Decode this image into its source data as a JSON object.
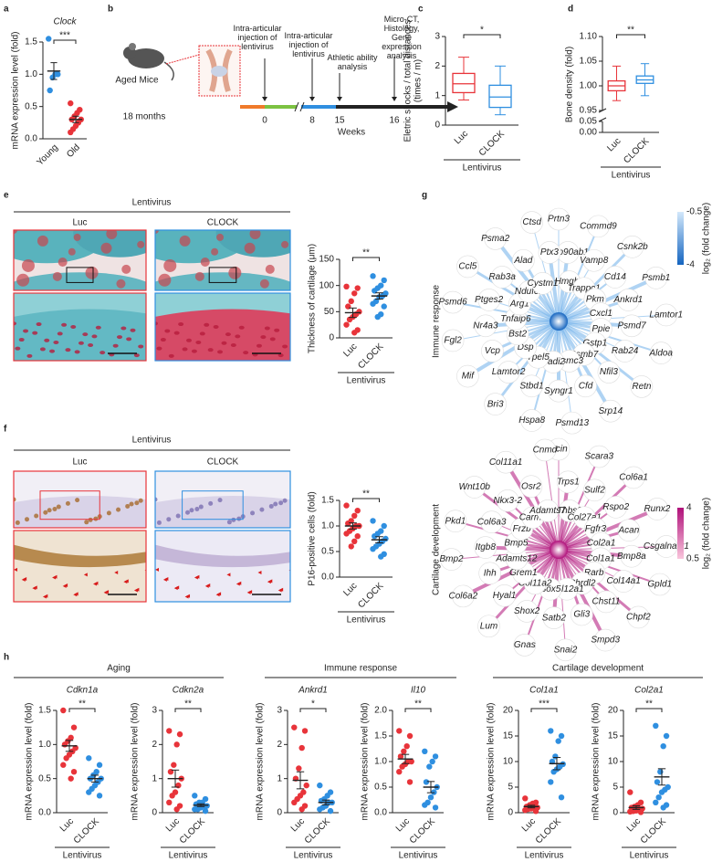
{
  "panel_labels": [
    "a",
    "b",
    "c",
    "d",
    "e",
    "f",
    "g",
    "h"
  ],
  "timeline": {
    "subject": "Aged Mice",
    "age": "18 months",
    "events": [
      {
        "label": "Intra-articular injection of lentivirus",
        "week": 0
      },
      {
        "label": "Intra-articular injection of lentivirus",
        "week": 8
      },
      {
        "label": "Athletic ability analysis",
        "week": 15
      },
      {
        "label": "Micro-CT, Histology, Gene expression analysis",
        "week": 16
      }
    ],
    "unit": "Weeks"
  },
  "histology": [
    {
      "header": "Lentivirus",
      "labels": [
        "Luc",
        "CLOCK"
      ]
    },
    {
      "header": "Lentivirus",
      "labels": [
        "Luc",
        "CLOCK"
      ]
    }
  ],
  "h_groups": [
    "Aging",
    "Immune response",
    "Cartilage development"
  ],
  "networks": [
    {
      "title": "Immune response",
      "genes": [
        "Prtn3",
        "Hsp90ab1",
        "Hmgb1",
        "Commd9",
        "Vamp8",
        "Trappc1",
        "Csnk2b",
        "Cd14",
        "Pkm",
        "Psmb1",
        "Ankrd1",
        "Cxcl1",
        "Lamtor1",
        "Psmd7",
        "Ppie",
        "Aldoa",
        "Rab24",
        "Gstp1",
        "Retn",
        "Nfil3",
        "Psmb7",
        "Srp14",
        "Cfd",
        "Psmc3",
        "Psmd13",
        "Syngr1",
        "Padi2",
        "Hspa8",
        "Stbd1",
        "Ypel5",
        "Bri3",
        "Lamtor2",
        "Dsp",
        "Mif",
        "Vcp",
        "Bst2",
        "Fgl2",
        "Nr4a3",
        "Tnfaip6",
        "Psmd6",
        "Ptges2",
        "Arg1",
        "Ccl5",
        "Rab3a",
        "Ndufc2",
        "Psma2",
        "Alad",
        "Cystm1",
        "Ctsd",
        "Ptx3"
      ],
      "legend": {
        "title": "log₂ (fold change)",
        "ticks": [
          -0.5,
          -4
        ],
        "colors": [
          "#d3e8fb",
          "#1565c0"
        ]
      }
    },
    {
      "title": "Cartilage development",
      "genes": [
        "Scin",
        "Trps1",
        "Thbs3",
        "Scara3",
        "Sulf2",
        "Col27a1",
        "Col6a1",
        "Rspo2",
        "Fgfr3",
        "Runx2",
        "Acan",
        "Col2a1",
        "Csgalnact1",
        "Bmp8a",
        "Col1a1",
        "Gpld1",
        "Col14a1",
        "Rarb",
        "Chpf2",
        "Chst11",
        "Chrdl2",
        "Smpd3",
        "Gli3",
        "Col12a1",
        "Snai2",
        "Satb2",
        "Sox5",
        "Gnas",
        "Shox2",
        "Col11a2",
        "Lum",
        "Hyal1",
        "Grem1",
        "Col6a2",
        "Ihh",
        "Adamts12",
        "Bmp2",
        "Itgb8",
        "Bmp5",
        "Pkd1",
        "Col6a3",
        "Frzb",
        "Wnt10b",
        "Nkx3-2",
        "Carm1",
        "Col11a1",
        "Osr2",
        "Adamts7",
        "Cnmd"
      ],
      "legend": {
        "title": "log₂ (fold change)",
        "ticks": [
          4,
          0.5
        ],
        "colors": [
          "#b0107a",
          "#f9c6dc"
        ]
      }
    }
  ],
  "chart_data": [
    {
      "type": "dot",
      "title": "Clock",
      "ylabel": "mRNA expression level (fold)",
      "categories": [
        "Young",
        "Old"
      ],
      "colors": [
        "#2f8fe0",
        "#e8343a"
      ],
      "values": [
        [
          1.55,
          1.0,
          1.0,
          0.95,
          0.75
        ],
        [
          0.55,
          0.45,
          0.4,
          0.35,
          0.3,
          0.3,
          0.25,
          0.2,
          0.15,
          0.1
        ]
      ],
      "means": [
        1.05,
        0.3
      ],
      "errors": [
        0.13,
        0.05
      ],
      "ylim": [
        0,
        1.5
      ],
      "yticks": [
        {
          "value": 0,
          "label": "0.0"
        },
        0.5,
        {
          "value": 1,
          "label": "1.0"
        },
        1.5
      ],
      "annotation": "***"
    },
    {
      "type": "box",
      "ylabel": [
        "Eletric shocks / total distances",
        "(times / m)"
      ],
      "categories": [
        "Luc",
        "CLOCK"
      ],
      "colors": [
        "#e8343a",
        "#2f8fe0"
      ],
      "boxes": [
        {
          "min": 0.85,
          "q1": 1.1,
          "median": 1.4,
          "q3": 1.75,
          "max": 2.3
        },
        {
          "min": 0.35,
          "q1": 0.6,
          "median": 0.95,
          "q3": 1.35,
          "max": 2.0
        }
      ],
      "ylim": [
        0,
        3
      ],
      "yticks": [
        0,
        1,
        2,
        3
      ],
      "annotation": "*",
      "group_label": "Lentivirus"
    },
    {
      "type": "box",
      "ylabel": "Bone density (fold)",
      "categories": [
        "Luc",
        "CLOCK"
      ],
      "colors": [
        "#e8343a",
        "#2f8fe0"
      ],
      "boxes": [
        {
          "min": 0.97,
          "q1": 0.99,
          "median": 1.0,
          "q3": 1.01,
          "max": 1.04
        },
        {
          "min": 0.98,
          "q1": 1.005,
          "median": 1.012,
          "q3": 1.02,
          "max": 1.045
        }
      ],
      "ylim": [
        0.95,
        1.1
      ],
      "yticks": [
        0.95,
        {
          "value": 1,
          "label": "1.00"
        },
        1.05,
        {
          "value": 1.1,
          "label": "1.10"
        }
      ],
      "ybreak": {
        "lim": [
          0,
          0.05
        ],
        "ticks": [
          {
            "value": 0,
            "label": "0.00"
          },
          0.05
        ]
      },
      "annotation": "**",
      "group_label": "Lentivirus"
    },
    {
      "type": "dot",
      "ylabel": "Thickness of cartilage (μm)",
      "categories": [
        "Luc",
        "CLOCK"
      ],
      "colors": [
        "#e8343a",
        "#2f8fe0"
      ],
      "values": [
        [
          98,
          95,
          85,
          70,
          60,
          50,
          45,
          40,
          35,
          25,
          15,
          10
        ],
        [
          118,
          110,
          100,
          95,
          90,
          85,
          80,
          78,
          70,
          65,
          60,
          45,
          40
        ]
      ],
      "means": [
        48,
        80
      ],
      "errors": [
        9,
        6
      ],
      "ylim": [
        0,
        150
      ],
      "yticks": [
        0,
        50,
        100,
        150
      ],
      "annotation": "**",
      "group_label": "Lentivirus"
    },
    {
      "type": "dot",
      "ylabel": "P16-positive cells (fold)",
      "categories": [
        "Luc",
        "CLOCK"
      ],
      "colors": [
        "#e8343a",
        "#2f8fe0"
      ],
      "values": [
        [
          1.4,
          1.3,
          1.2,
          1.1,
          1.05,
          1.0,
          1.0,
          0.95,
          0.9,
          0.85,
          0.8,
          0.7,
          0.6
        ],
        [
          1.1,
          1.0,
          0.9,
          0.85,
          0.8,
          0.75,
          0.7,
          0.65,
          0.6,
          0.55,
          0.45,
          0.4
        ]
      ],
      "means": [
        1.0,
        0.73
      ],
      "errors": [
        0.06,
        0.06
      ],
      "ylim": [
        0,
        1.5
      ],
      "yticks": [
        {
          "value": 0,
          "label": "0.0"
        },
        0.5,
        {
          "value": 1,
          "label": "1.0"
        },
        1.5
      ],
      "annotation": "**",
      "group_label": "Lentivirus"
    },
    {
      "type": "dot",
      "title": "Cdkn1a",
      "ylabel": "mRNA expression level (fold)",
      "categories": [
        "Luc",
        "CLOCK"
      ],
      "colors": [
        "#e8343a",
        "#2f8fe0"
      ],
      "values": [
        [
          1.5,
          1.25,
          1.1,
          1.05,
          1.0,
          0.95,
          0.9,
          0.85,
          0.8,
          0.7,
          0.6,
          0.5
        ],
        [
          0.8,
          0.7,
          0.6,
          0.55,
          0.5,
          0.5,
          0.45,
          0.4,
          0.35,
          0.3,
          0.25
        ]
      ],
      "means": [
        0.98,
        0.5
      ],
      "errors": [
        0.08,
        0.05
      ],
      "ylim": [
        0,
        1.5
      ],
      "yticks": [
        {
          "value": 0,
          "label": "0.0"
        },
        0.5,
        {
          "value": 1,
          "label": "1.0"
        },
        1.5
      ],
      "annotation": "**",
      "group_label": "Lentivirus"
    },
    {
      "type": "dot",
      "title": "Cdkn2a",
      "ylabel": "mRNA expression level (fold)",
      "categories": [
        "Luc",
        "CLOCK"
      ],
      "colors": [
        "#e8343a",
        "#2f8fe0"
      ],
      "values": [
        [
          2.4,
          2.3,
          2.0,
          1.4,
          1.2,
          1.0,
          0.8,
          0.6,
          0.5,
          0.3,
          0.2,
          0.1
        ],
        [
          0.5,
          0.4,
          0.3,
          0.3,
          0.25,
          0.2,
          0.2,
          0.15,
          0.1,
          0.1,
          0.05
        ]
      ],
      "means": [
        1.0,
        0.22
      ],
      "errors": [
        0.25,
        0.04
      ],
      "ylim": [
        0,
        3
      ],
      "yticks": [
        0,
        1,
        2,
        3
      ],
      "annotation": "**",
      "group_label": "Lentivirus"
    },
    {
      "type": "dot",
      "title": "Ankrd1",
      "ylabel": "mRNA expression level (fold)",
      "categories": [
        "Luc",
        "CLOCK"
      ],
      "colors": [
        "#e8343a",
        "#2f8fe0"
      ],
      "values": [
        [
          2.5,
          2.4,
          1.9,
          1.3,
          1.0,
          0.8,
          0.6,
          0.5,
          0.4,
          0.3,
          0.2,
          0.1
        ],
        [
          0.8,
          0.6,
          0.5,
          0.4,
          0.35,
          0.3,
          0.3,
          0.2,
          0.15,
          0.1,
          0.05
        ]
      ],
      "means": [
        0.95,
        0.3
      ],
      "errors": [
        0.25,
        0.07
      ],
      "ylim": [
        0,
        3
      ],
      "yticks": [
        0,
        1,
        2,
        3
      ],
      "annotation": "*",
      "group_label": "Lentivirus"
    },
    {
      "type": "dot",
      "title": "Il10",
      "ylabel": "mRNA expression level (fold)",
      "categories": [
        "Luc",
        "CLOCK"
      ],
      "colors": [
        "#e8343a",
        "#2f8fe0"
      ],
      "values": [
        [
          1.6,
          1.5,
          1.3,
          1.2,
          1.1,
          1.0,
          1.0,
          0.95,
          0.9,
          0.8,
          0.6
        ],
        [
          1.2,
          1.1,
          1.0,
          0.9,
          0.6,
          0.5,
          0.4,
          0.3,
          0.2,
          0.15,
          0.1
        ]
      ],
      "means": [
        1.05,
        0.5
      ],
      "errors": [
        0.09,
        0.11
      ],
      "ylim": [
        0,
        2
      ],
      "yticks": [
        {
          "value": 0,
          "label": "0.0"
        },
        0.5,
        {
          "value": 1,
          "label": "1.0"
        },
        1.5,
        {
          "value": 2,
          "label": "2.0"
        }
      ],
      "annotation": "**",
      "group_label": "Lentivirus"
    },
    {
      "type": "dot",
      "title": "Col1a1",
      "ylabel": "mRNA expression level (fold)",
      "categories": [
        "Luc",
        "CLOCK"
      ],
      "colors": [
        "#e8343a",
        "#2f8fe0"
      ],
      "values": [
        [
          2.8,
          2,
          1.8,
          1.5,
          1.2,
          1,
          1,
          0.8,
          0.7,
          0.5,
          0.3
        ],
        [
          16,
          15,
          14,
          11,
          10,
          9.5,
          9,
          8.5,
          8,
          6,
          3
        ]
      ],
      "means": [
        1.2,
        9.6
      ],
      "errors": [
        0.25,
        1.2
      ],
      "ylim": [
        0,
        20
      ],
      "yticks": [
        0,
        5,
        10,
        15,
        20
      ],
      "annotation": "***",
      "group_label": "Lentivirus"
    },
    {
      "type": "dot",
      "title": "Col2a1",
      "ylabel": "mRNA expression level (fold)",
      "categories": [
        "Luc",
        "CLOCK"
      ],
      "colors": [
        "#e8343a",
        "#2f8fe0"
      ],
      "values": [
        [
          4,
          2,
          1.5,
          1.2,
          1,
          0.8,
          0.5,
          0.4,
          0.3,
          0.2,
          0.1
        ],
        [
          17,
          15,
          13,
          8,
          6,
          5,
          4.5,
          4,
          3,
          2,
          1.5,
          1
        ]
      ],
      "means": [
        1.0,
        7
      ],
      "errors": [
        0.35,
        1.6
      ],
      "ylim": [
        0,
        20
      ],
      "yticks": [
        0,
        5,
        10,
        15,
        20
      ],
      "annotation": "**",
      "group_label": "Lentivirus"
    }
  ]
}
